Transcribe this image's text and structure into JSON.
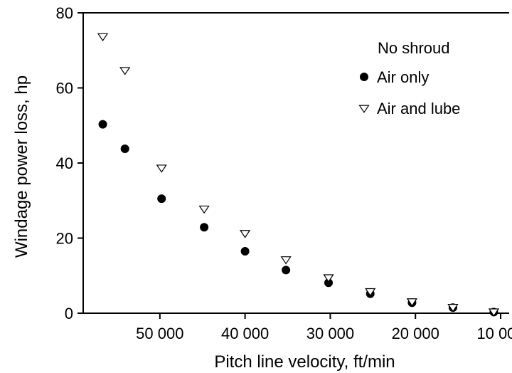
{
  "chart_data": {
    "type": "scatter",
    "xlabel": "Pitch line velocity, ft/min",
    "ylabel": "Windage power loss, hp",
    "xlim": [
      59000,
      9000
    ],
    "ylim": [
      0,
      80
    ],
    "x_reversed": true,
    "x_ticks": [
      50000,
      40000,
      30000,
      20000,
      10000
    ],
    "x_tick_labels": [
      "50 000",
      "40 000",
      "30 000",
      "20 000",
      "10 000"
    ],
    "y_ticks": [
      0,
      20,
      40,
      60,
      80
    ],
    "y_tick_labels": [
      "0",
      "20",
      "40",
      "60",
      "80"
    ],
    "grid": false,
    "legend": {
      "title": "No shroud",
      "position": "top-right"
    },
    "series": [
      {
        "name": "Air only",
        "marker": "filled-circle",
        "color": "#000000",
        "x": [
          56700,
          54100,
          49800,
          44800,
          40000,
          35200,
          30200,
          25300,
          20400,
          15600,
          10800
        ],
        "y": [
          50.3,
          43.8,
          30.5,
          22.9,
          16.5,
          11.5,
          8.1,
          5.2,
          2.8,
          1.5,
          0.3
        ]
      },
      {
        "name": "Air and lube",
        "marker": "open-triangle-down",
        "color": "#000000",
        "x": [
          56700,
          54100,
          49800,
          44800,
          40000,
          35200,
          30200,
          25300,
          20400,
          15600,
          10800
        ],
        "y": [
          73.7,
          64.7,
          38.7,
          27.8,
          21.3,
          14.3,
          9.5,
          5.8,
          3.1,
          1.6,
          0.4
        ]
      }
    ]
  }
}
